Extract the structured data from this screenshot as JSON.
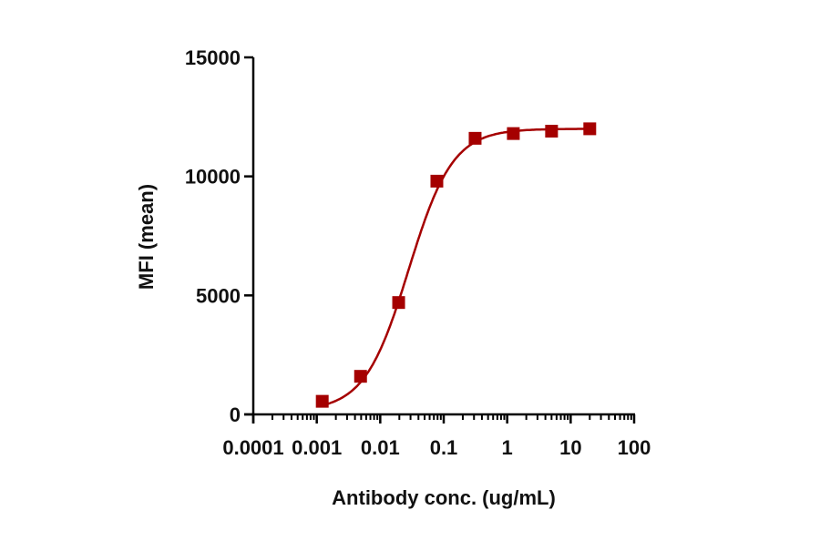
{
  "chart_data": {
    "type": "scatter",
    "title": "",
    "xlabel": "Antibody conc. (ug/mL)",
    "ylabel": "MFI (mean)",
    "xscale": "log",
    "xlim": [
      0.0001,
      100
    ],
    "ylim": [
      0,
      15000
    ],
    "x_ticks": [
      "0.0001",
      "0.001",
      "0.01",
      "0.1",
      "1",
      "10",
      "100"
    ],
    "y_ticks": [
      "0",
      "5000",
      "10000",
      "15000"
    ],
    "grid": false,
    "legend": null,
    "series": [
      {
        "name": "MFI",
        "color": "#A50000",
        "marker": "square",
        "fit": "4PL sigmoid",
        "x": [
          0.00122,
          0.0049,
          0.0195,
          0.078,
          0.3125,
          1.25,
          5,
          20
        ],
        "y": [
          550,
          1600,
          4700,
          9800,
          11600,
          11800,
          11900,
          12000
        ]
      }
    ]
  }
}
